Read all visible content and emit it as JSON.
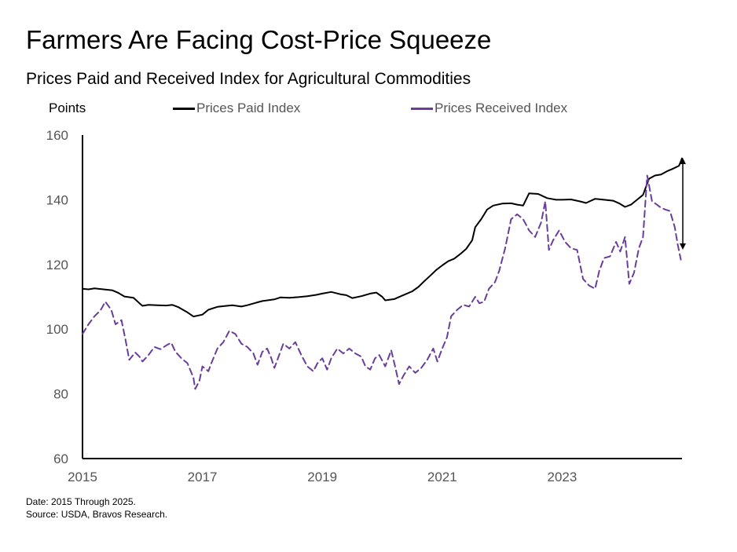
{
  "header": {
    "title": "Farmers Are Facing Cost-Price Squeeze",
    "subtitle": "Prices Paid and Received Index for Agricultural Commodities"
  },
  "footer": {
    "date_note": "Date: 2015 Through 2025.",
    "source_note": "Source: USDA, Bravos Research."
  },
  "colors": {
    "paid": "#000000",
    "received": "#6a3d9a"
  },
  "chart_data": {
    "type": "line",
    "title": "Farmers Are Facing Cost-Price Squeeze",
    "subtitle": "Prices Paid and Received Index for Agricultural Commodities",
    "ylabel": "Points",
    "xlabel": "",
    "ylim": [
      60,
      160
    ],
    "xlim": [
      2015.0,
      2025.0
    ],
    "yticks": [
      "160",
      "140",
      "120",
      "100",
      "80",
      "60"
    ],
    "xticks": [
      "2015",
      "2017",
      "2019",
      "2021",
      "2023"
    ],
    "grid": false,
    "legend_position": "top",
    "annotation": "double-headed arrow between Prices Paid Index (152) and Prices Received Index (126) at end of 2024",
    "series": [
      {
        "name": "Prices Paid Index",
        "style": "solid",
        "points": [
          [
            2015.0,
            112.5
          ],
          [
            2015.1,
            112.3
          ],
          [
            2015.2,
            112.6
          ],
          [
            2015.35,
            112.3
          ],
          [
            2015.5,
            112.0
          ],
          [
            2015.6,
            111.2
          ],
          [
            2015.7,
            110.1
          ],
          [
            2015.85,
            109.7
          ],
          [
            2015.95,
            108.0
          ],
          [
            2016.0,
            107.2
          ],
          [
            2016.1,
            107.5
          ],
          [
            2016.25,
            107.4
          ],
          [
            2016.4,
            107.3
          ],
          [
            2016.5,
            107.5
          ],
          [
            2016.6,
            106.8
          ],
          [
            2016.75,
            105.2
          ],
          [
            2016.85,
            103.9
          ],
          [
            2017.0,
            104.5
          ],
          [
            2017.1,
            106.0
          ],
          [
            2017.25,
            106.9
          ],
          [
            2017.4,
            107.2
          ],
          [
            2017.5,
            107.4
          ],
          [
            2017.65,
            107.0
          ],
          [
            2017.75,
            107.4
          ],
          [
            2017.9,
            108.2
          ],
          [
            2018.0,
            108.7
          ],
          [
            2018.2,
            109.2
          ],
          [
            2018.3,
            109.8
          ],
          [
            2018.45,
            109.7
          ],
          [
            2018.6,
            109.9
          ],
          [
            2018.75,
            110.2
          ],
          [
            2018.9,
            110.6
          ],
          [
            2019.0,
            111.0
          ],
          [
            2019.15,
            111.5
          ],
          [
            2019.3,
            110.8
          ],
          [
            2019.4,
            110.5
          ],
          [
            2019.5,
            109.6
          ],
          [
            2019.65,
            110.2
          ],
          [
            2019.8,
            111.0
          ],
          [
            2019.9,
            111.3
          ],
          [
            2020.0,
            110.0
          ],
          [
            2020.05,
            108.9
          ],
          [
            2020.2,
            109.3
          ],
          [
            2020.35,
            110.5
          ],
          [
            2020.5,
            111.7
          ],
          [
            2020.6,
            113.0
          ],
          [
            2020.7,
            114.8
          ],
          [
            2020.8,
            116.5
          ],
          [
            2020.9,
            118.3
          ],
          [
            2021.0,
            119.7
          ],
          [
            2021.1,
            121.0
          ],
          [
            2021.2,
            121.8
          ],
          [
            2021.3,
            123.2
          ],
          [
            2021.4,
            124.8
          ],
          [
            2021.5,
            127.5
          ],
          [
            2021.55,
            131.5
          ],
          [
            2021.65,
            134.0
          ],
          [
            2021.75,
            137.0
          ],
          [
            2021.85,
            138.2
          ],
          [
            2022.0,
            138.8
          ],
          [
            2022.15,
            138.9
          ],
          [
            2022.25,
            138.5
          ],
          [
            2022.35,
            138.2
          ],
          [
            2022.45,
            142.0
          ],
          [
            2022.6,
            141.8
          ],
          [
            2022.75,
            140.5
          ],
          [
            2022.9,
            140.0
          ],
          [
            2023.0,
            140.0
          ],
          [
            2023.15,
            140.1
          ],
          [
            2023.3,
            139.5
          ],
          [
            2023.4,
            139.0
          ],
          [
            2023.55,
            140.3
          ],
          [
            2023.7,
            140.0
          ],
          [
            2023.85,
            139.7
          ],
          [
            2023.95,
            138.9
          ],
          [
            2024.05,
            137.8
          ],
          [
            2024.15,
            138.5
          ],
          [
            2024.25,
            140.0
          ],
          [
            2024.35,
            141.5
          ],
          [
            2024.45,
            146.5
          ],
          [
            2024.55,
            147.5
          ],
          [
            2024.65,
            147.8
          ],
          [
            2024.75,
            148.8
          ],
          [
            2024.85,
            149.6
          ],
          [
            2024.95,
            150.5
          ],
          [
            2025.0,
            152.8
          ]
        ]
      },
      {
        "name": "Prices Received Index",
        "style": "dashed",
        "points": [
          [
            2015.0,
            98.5
          ],
          [
            2015.1,
            101.5
          ],
          [
            2015.2,
            104.0
          ],
          [
            2015.3,
            105.8
          ],
          [
            2015.38,
            108.5
          ],
          [
            2015.48,
            106.0
          ],
          [
            2015.55,
            101.5
          ],
          [
            2015.65,
            102.8
          ],
          [
            2015.72,
            96.5
          ],
          [
            2015.78,
            90.5
          ],
          [
            2015.88,
            92.8
          ],
          [
            2015.95,
            91.5
          ],
          [
            2016.0,
            90.0
          ],
          [
            2016.1,
            92.0
          ],
          [
            2016.2,
            94.5
          ],
          [
            2016.3,
            93.8
          ],
          [
            2016.4,
            95.0
          ],
          [
            2016.48,
            95.8
          ],
          [
            2016.55,
            93.0
          ],
          [
            2016.65,
            91.0
          ],
          [
            2016.75,
            89.5
          ],
          [
            2016.85,
            85.0
          ],
          [
            2016.88,
            81.5
          ],
          [
            2016.95,
            84.0
          ],
          [
            2017.0,
            88.5
          ],
          [
            2017.1,
            87.0
          ],
          [
            2017.15,
            89.5
          ],
          [
            2017.25,
            94.0
          ],
          [
            2017.35,
            96.0
          ],
          [
            2017.45,
            99.5
          ],
          [
            2017.55,
            98.5
          ],
          [
            2017.65,
            95.5
          ],
          [
            2017.75,
            94.5
          ],
          [
            2017.85,
            92.5
          ],
          [
            2017.92,
            89.0
          ],
          [
            2018.0,
            93.0
          ],
          [
            2018.08,
            94.0
          ],
          [
            2018.15,
            91.0
          ],
          [
            2018.2,
            88.0
          ],
          [
            2018.28,
            92.0
          ],
          [
            2018.35,
            95.5
          ],
          [
            2018.45,
            94.0
          ],
          [
            2018.55,
            96.0
          ],
          [
            2018.65,
            92.0
          ],
          [
            2018.75,
            88.5
          ],
          [
            2018.85,
            87.0
          ],
          [
            2018.92,
            89.5
          ],
          [
            2019.0,
            91.0
          ],
          [
            2019.08,
            87.5
          ],
          [
            2019.15,
            91.0
          ],
          [
            2019.25,
            94.0
          ],
          [
            2019.35,
            92.5
          ],
          [
            2019.45,
            94.0
          ],
          [
            2019.55,
            92.5
          ],
          [
            2019.65,
            91.5
          ],
          [
            2019.72,
            88.5
          ],
          [
            2019.8,
            87.5
          ],
          [
            2019.88,
            91.0
          ],
          [
            2019.95,
            92.0
          ],
          [
            2020.05,
            88.5
          ],
          [
            2020.15,
            93.5
          ],
          [
            2020.22,
            88.0
          ],
          [
            2020.28,
            83.0
          ],
          [
            2020.35,
            85.5
          ],
          [
            2020.45,
            88.5
          ],
          [
            2020.55,
            86.5
          ],
          [
            2020.65,
            88.0
          ],
          [
            2020.75,
            90.5
          ],
          [
            2020.85,
            94.0
          ],
          [
            2020.92,
            90.0
          ],
          [
            2021.0,
            94.0
          ],
          [
            2021.08,
            97.5
          ],
          [
            2021.15,
            104.0
          ],
          [
            2021.25,
            106.0
          ],
          [
            2021.35,
            107.5
          ],
          [
            2021.45,
            107.0
          ],
          [
            2021.55,
            110.0
          ],
          [
            2021.62,
            108.0
          ],
          [
            2021.7,
            108.5
          ],
          [
            2021.78,
            112.5
          ],
          [
            2021.88,
            114.5
          ],
          [
            2021.95,
            118.0
          ],
          [
            2022.05,
            125.0
          ],
          [
            2022.15,
            134.0
          ],
          [
            2022.25,
            135.5
          ],
          [
            2022.35,
            134.0
          ],
          [
            2022.45,
            130.5
          ],
          [
            2022.55,
            128.5
          ],
          [
            2022.65,
            133.0
          ],
          [
            2022.72,
            139.5
          ],
          [
            2022.78,
            124.5
          ],
          [
            2022.85,
            127.5
          ],
          [
            2022.95,
            130.5
          ],
          [
            2023.05,
            127.0
          ],
          [
            2023.15,
            125.0
          ],
          [
            2023.25,
            124.5
          ],
          [
            2023.35,
            115.5
          ],
          [
            2023.45,
            113.5
          ],
          [
            2023.55,
            112.5
          ],
          [
            2023.62,
            118.0
          ],
          [
            2023.7,
            122.0
          ],
          [
            2023.8,
            122.5
          ],
          [
            2023.9,
            127.0
          ],
          [
            2023.97,
            124.0
          ],
          [
            2024.05,
            128.5
          ],
          [
            2024.12,
            114.0
          ],
          [
            2024.2,
            117.5
          ],
          [
            2024.28,
            125.0
          ],
          [
            2024.35,
            128.5
          ],
          [
            2024.42,
            147.5
          ],
          [
            2024.5,
            139.5
          ],
          [
            2024.58,
            138.5
          ],
          [
            2024.65,
            137.5
          ],
          [
            2024.72,
            137.0
          ],
          [
            2024.8,
            136.5
          ],
          [
            2024.88,
            131.5
          ],
          [
            2024.93,
            126.0
          ],
          [
            2024.98,
            121.5
          ]
        ]
      }
    ]
  }
}
